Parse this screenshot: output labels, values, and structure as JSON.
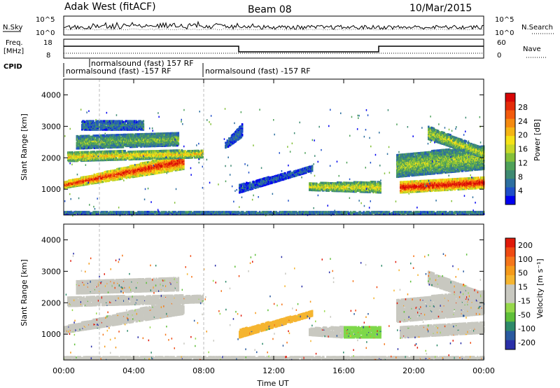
{
  "header": {
    "station": "Adak West (fitACF)",
    "beam": "Beam 08",
    "date": "10/Mar/2015"
  },
  "noise_panel": {
    "left_label": "N.Sky",
    "right_label": "N.Search",
    "left_ticks": [
      "10^5",
      "10^0"
    ],
    "right_ticks": [
      "10^5",
      "10^0"
    ]
  },
  "freq_panel": {
    "left_label_1": "Freq.",
    "left_label_2": "[MHz]",
    "left_ticks": [
      "18",
      "8"
    ],
    "right_label": "Nave",
    "right_ticks": [
      "60",
      "0"
    ],
    "cpid_label": "CPID"
  },
  "cpid_panel": {
    "labels": [
      "normalsound (fast) -157 RF",
      "normalsound (fast) 157 RF",
      "normalsound (fast) -157 RF"
    ]
  },
  "x_axis": {
    "title": "Time UT",
    "ticks": [
      "00:00",
      "04:00",
      "08:00",
      "12:00",
      "16:00",
      "20:00",
      "00:00"
    ]
  },
  "chart_data": [
    {
      "type": "heatmap",
      "name": "power",
      "ylabel": "Slant Range [km]",
      "ylim": [
        180,
        4500
      ],
      "yticks": [
        "1000",
        "2000",
        "3000",
        "4000"
      ],
      "xlim_hours": [
        0,
        24
      ],
      "colorbar": {
        "title": "Power [dB]",
        "ticks": [
          "4",
          "8",
          "12",
          "16",
          "20",
          "24",
          "28"
        ],
        "colors": [
          "#0000f0",
          "#1f4fc8",
          "#2d6fa0",
          "#3e8a72",
          "#4fa25a",
          "#84c03a",
          "#c8d828",
          "#f5e216",
          "#f5b514",
          "#f58a10",
          "#f35a0c",
          "#e52b09",
          "#d80606"
        ]
      },
      "bands": [
        {
          "t": [
            0.0,
            6.8
          ],
          "r0": [
            1050,
            1650
          ],
          "r1": [
            1250,
            2150
          ],
          "level": 0.82
        },
        {
          "t": [
            0.2,
            7.9
          ],
          "r0": [
            1900,
            2020
          ],
          "r1": [
            2200,
            2250
          ],
          "level": 0.55
        },
        {
          "t": [
            0.7,
            6.5
          ],
          "r0": [
            2300,
            2400
          ],
          "r1": [
            2700,
            2800
          ],
          "level": 0.35
        },
        {
          "t": [
            1.0,
            4.5
          ],
          "r0": [
            2900,
            2900
          ],
          "r1": [
            3200,
            3200
          ],
          "level": 0.2
        },
        {
          "t": [
            9.2,
            10.2
          ],
          "r0": [
            2300,
            2700
          ],
          "r1": [
            2500,
            3100
          ],
          "level": 0.18
        },
        {
          "t": [
            10.0,
            14.2
          ],
          "r0": [
            900,
            1600
          ],
          "r1": [
            1150,
            1750
          ],
          "level": 0.15
        },
        {
          "t": [
            14.0,
            18.1
          ],
          "r0": [
            980,
            900
          ],
          "r1": [
            1200,
            1250
          ],
          "level": 0.5
        },
        {
          "t": [
            19.2,
            24.0
          ],
          "r0": [
            900,
            1050
          ],
          "r1": [
            1250,
            1400
          ],
          "level": 0.88
        },
        {
          "t": [
            19.0,
            24.0
          ],
          "r0": [
            1400,
            1650
          ],
          "r1": [
            2100,
            2400
          ],
          "level": 0.4
        },
        {
          "t": [
            20.8,
            24.0
          ],
          "r0": [
            2600,
            2000
          ],
          "r1": [
            3000,
            2300
          ],
          "level": 0.45
        },
        {
          "t": [
            0.0,
            24.0
          ],
          "r0": [
            220,
            220
          ],
          "r1": [
            300,
            300
          ],
          "level": 0.25
        }
      ]
    },
    {
      "type": "heatmap",
      "name": "velocity",
      "ylabel": "Slant Range [km]",
      "ylim": [
        180,
        4500
      ],
      "yticks": [
        "1000",
        "2000",
        "3000",
        "4000"
      ],
      "xlim_hours": [
        0,
        24
      ],
      "colorbar": {
        "title": "Velocity [m s⁻¹]",
        "ticks": [
          "200",
          "100",
          "50",
          "15",
          "-15",
          "-50",
          "-100",
          "-200"
        ],
        "colors": [
          "#2a2fa8",
          "#2a5aa0",
          "#2e8a6a",
          "#5fbf3a",
          "#96d84a",
          "#c8c8c0",
          "#c8c8c0",
          "#f5b530",
          "#f59a1a",
          "#f5761a",
          "#ef4a12",
          "#e01a0a"
        ]
      },
      "bands": [
        {
          "t": [
            0.0,
            6.8
          ],
          "r0": [
            1050,
            1650
          ],
          "r1": [
            1250,
            2150
          ],
          "color": "#c8c8c0"
        },
        {
          "t": [
            0.2,
            7.9
          ],
          "r0": [
            1900,
            2020
          ],
          "r1": [
            2200,
            2250
          ],
          "color": "#c8c8c0"
        },
        {
          "t": [
            0.7,
            6.5
          ],
          "r0": [
            2300,
            2400
          ],
          "r1": [
            2700,
            2800
          ],
          "color": "#c8c8c0"
        },
        {
          "t": [
            10.0,
            14.2
          ],
          "r0": [
            900,
            1600
          ],
          "r1": [
            1150,
            1750
          ],
          "color": "#f5b530"
        },
        {
          "t": [
            14.0,
            16.0
          ],
          "r0": [
            980,
            900
          ],
          "r1": [
            1200,
            1250
          ],
          "color": "#c8c8c0"
        },
        {
          "t": [
            16.0,
            18.1
          ],
          "r0": [
            900,
            900
          ],
          "r1": [
            1250,
            1250
          ],
          "color": "#7ed84a"
        },
        {
          "t": [
            19.2,
            24.0
          ],
          "r0": [
            900,
            1050
          ],
          "r1": [
            1250,
            1400
          ],
          "color": "#c8c8c0"
        },
        {
          "t": [
            19.0,
            24.0
          ],
          "r0": [
            1400,
            1650
          ],
          "r1": [
            2100,
            2400
          ],
          "color": "#c8c8c0"
        },
        {
          "t": [
            20.8,
            24.0
          ],
          "r0": [
            2600,
            2000
          ],
          "r1": [
            3000,
            2300
          ],
          "color": "#c8c8c0"
        },
        {
          "t": [
            0.0,
            24.0
          ],
          "r0": [
            220,
            220
          ],
          "r1": [
            300,
            300
          ],
          "color": "#c8c8c0"
        }
      ]
    }
  ]
}
